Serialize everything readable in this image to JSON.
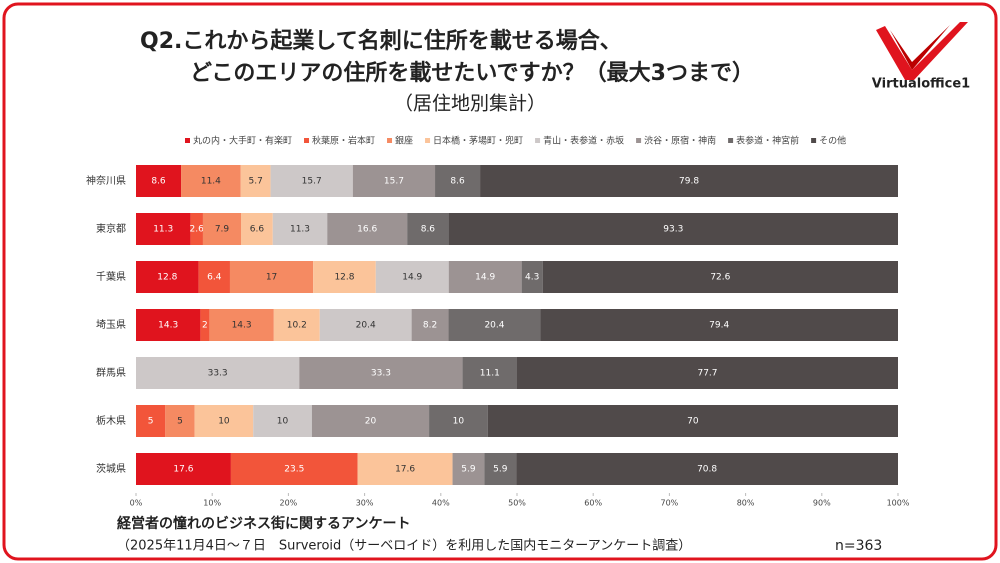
{
  "chart_data": {
    "type": "stacked-bar-100",
    "title": "Q2.これから起業して名刺に住所を載せる場合、",
    "title_line2": "どこのエリアの住所を載せたいですか？（最大3つまで）",
    "subtitle": "（居住地別集計）",
    "logo": "Virtualoffice1",
    "footer_title": "経営者の憧れのビジネス街に関するアンケート",
    "footer_note": "（2025年11月4日～７日　Surveroid（サーベロイド）を利用した国内モニターアンケート調査）",
    "sample_size": "n=363",
    "categories": [
      "神奈川県",
      "東京都",
      "千葉県",
      "埼玉県",
      "群馬県",
      "栃木県",
      "茨城県"
    ],
    "series": [
      {
        "name": "丸の内・大手町・有楽町",
        "color": "#e0141e",
        "values": [
          8.6,
          11.3,
          12.8,
          14.3,
          0,
          0,
          17.6
        ]
      },
      {
        "name": "秋葉原・岩本町",
        "color": "#f2553a",
        "values": [
          0,
          2.6,
          6.4,
          2,
          0,
          5,
          23.5
        ]
      },
      {
        "name": "銀座",
        "color": "#f58a62",
        "values": [
          11.4,
          7.9,
          17,
          14.3,
          0,
          5,
          0
        ]
      },
      {
        "name": "日本橋・茅場町・兜町",
        "color": "#fbc49a",
        "values": [
          5.7,
          6.6,
          12.8,
          10.2,
          0,
          10,
          17.6
        ]
      },
      {
        "name": "青山・表参道・赤坂",
        "color": "#cdc8c8",
        "values": [
          15.7,
          11.3,
          14.9,
          20.4,
          33.3,
          10,
          0
        ]
      },
      {
        "name": "渋谷・原宿・神南",
        "color": "#9c9393",
        "values": [
          15.7,
          16.6,
          14.9,
          8.2,
          33.3,
          20,
          5.9
        ]
      },
      {
        "name": "表参道・神宮前",
        "color": "#6f6b6b",
        "values": [
          8.6,
          8.6,
          4.3,
          20.4,
          11.1,
          10,
          5.9
        ]
      },
      {
        "name": "その他",
        "color": "#504a4a",
        "values": [
          79.8,
          93.3,
          72.6,
          79.4,
          77.7,
          70,
          70.8
        ]
      }
    ],
    "xlim": [
      0,
      100
    ],
    "xticks": [
      {
        "value": 0,
        "label": "0%"
      },
      {
        "value": 10,
        "label": "10%"
      },
      {
        "value": 20,
        "label": "20%"
      },
      {
        "value": 30,
        "label": "30%"
      },
      {
        "value": 40,
        "label": "40%"
      },
      {
        "value": 50,
        "label": "50%"
      },
      {
        "value": 60,
        "label": "60%"
      },
      {
        "value": 70,
        "label": "70%"
      },
      {
        "value": 80,
        "label": "80%"
      },
      {
        "value": 90,
        "label": "90%"
      },
      {
        "value": 100,
        "label": "100%"
      }
    ]
  }
}
